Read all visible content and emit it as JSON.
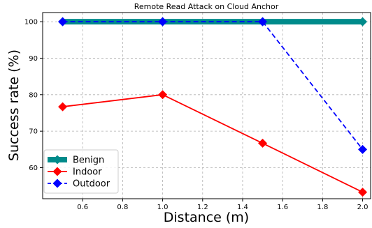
{
  "chart_data": {
    "type": "line",
    "title": "Remote Read Attack on Cloud Anchor",
    "xlabel": "Distance (m)",
    "ylabel": "Success rate (%)",
    "xlim": [
      0.4,
      2.04
    ],
    "ylim": [
      51.5,
      102.5
    ],
    "xticks": [
      0.6,
      0.8,
      1.0,
      1.2,
      1.4,
      1.6,
      1.8,
      2.0
    ],
    "xtick_labels": [
      "0.6",
      "0.8",
      "1.0",
      "1.2",
      "1.4",
      "1.6",
      "1.8",
      "2.0"
    ],
    "yticks": [
      60,
      70,
      80,
      90,
      100
    ],
    "ytick_labels": [
      "60",
      "70",
      "80",
      "90",
      "100"
    ],
    "grid": true,
    "grid_style": "dashed",
    "legend_position": "lower-left",
    "series": [
      {
        "name": "Benign",
        "x": [
          0.5,
          1.0,
          1.5,
          2.0
        ],
        "y": [
          100,
          100,
          100,
          100
        ],
        "color": "#008B8B",
        "line_style": "solid",
        "line_weight": "thick",
        "marker": "diamond"
      },
      {
        "name": "Indoor",
        "x": [
          0.5,
          1.0,
          1.5,
          2.0
        ],
        "y": [
          76.7,
          80.0,
          66.7,
          53.3
        ],
        "color": "#ff0000",
        "line_style": "solid",
        "line_weight": "normal",
        "marker": "diamond"
      },
      {
        "name": "Outdoor",
        "x": [
          0.5,
          1.0,
          1.5,
          2.0
        ],
        "y": [
          100,
          100,
          100,
          65.0
        ],
        "color": "#0000ff",
        "line_style": "dashed",
        "line_weight": "normal",
        "marker": "diamond"
      }
    ]
  }
}
